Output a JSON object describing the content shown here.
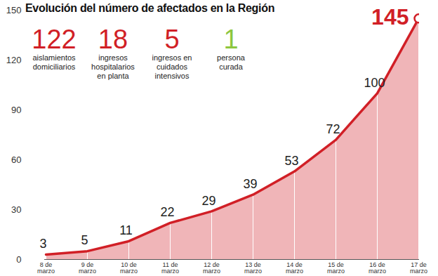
{
  "chart_data": {
    "type": "line",
    "title": "Evolución del número de afectados en la Región",
    "categories": [
      "8 de marzo",
      "9 de marzo",
      "10 de marzo",
      "11 de marzo",
      "12 de marzo",
      "13 de marzo",
      "14 de marzo",
      "15 de marzo",
      "16 de marzo",
      "17 de marzo"
    ],
    "values": [
      3,
      5,
      11,
      22,
      29,
      39,
      53,
      72,
      100,
      145
    ],
    "color": "#d11f26",
    "ylim": [
      0,
      150
    ],
    "yticks": [
      0,
      30,
      60,
      90,
      120,
      150
    ],
    "grid": true,
    "data_labels": true,
    "annotations": [
      {
        "value": 122,
        "label": "aislamientos domiciliarios",
        "color": "#d11f26"
      },
      {
        "value": 18,
        "label": "ingresos hospitalarios en planta",
        "color": "#d11f26"
      },
      {
        "value": 5,
        "label": "ingresos en cuidados intensivos",
        "color": "#d11f26"
      },
      {
        "value": 1,
        "label": "persona curada",
        "color": "#8dc63f"
      }
    ]
  }
}
